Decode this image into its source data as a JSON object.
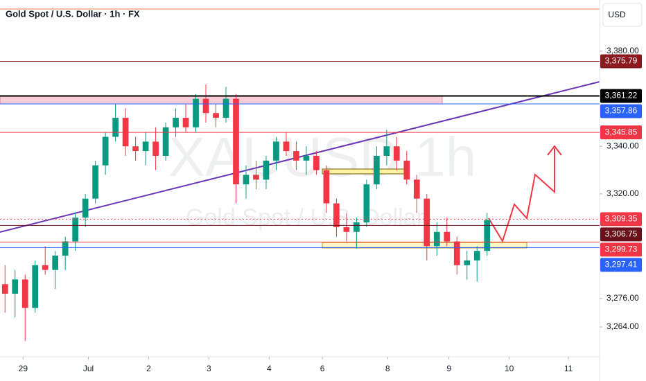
{
  "chart_data": {
    "type": "candlestick",
    "title": "Gold Spot / U.S. Dollar · 1h · FX",
    "currency": "USD",
    "watermark": "XAUUSD 1h",
    "watermark_subtitle": "Gold Spot / U.S. Dollar",
    "up_color": "#089981",
    "down_color": "#f23645",
    "xlim": [
      0,
      59.7
    ],
    "xticks": [
      {
        "value": 2.3,
        "label": "29"
      },
      {
        "value": 8.8,
        "label": "Jul"
      },
      {
        "value": 14.8,
        "label": "2"
      },
      {
        "value": 20.8,
        "label": "3"
      },
      {
        "value": 26.8,
        "label": "4"
      },
      {
        "value": 32.1,
        "label": "6"
      },
      {
        "value": 38.6,
        "label": "8"
      },
      {
        "value": 44.7,
        "label": "9"
      },
      {
        "value": 50.7,
        "label": "10"
      },
      {
        "value": 56.6,
        "label": "11"
      }
    ],
    "ylim": [
      3251.47,
      3401.57
    ],
    "yticks": [
      {
        "value": 3380,
        "label": "3,380.00"
      },
      {
        "value": 3340,
        "label": "3,340.00"
      },
      {
        "value": 3320,
        "label": "3,320.00"
      },
      {
        "value": 3276,
        "label": "3,276.00"
      },
      {
        "value": 3264,
        "label": "3,264.00"
      }
    ],
    "x": [
      0.5,
      1.5,
      2.5,
      3.5,
      4.5,
      5.5,
      6.5,
      7.5,
      8.5,
      9.5,
      10.5,
      11.5,
      12.5,
      13.5,
      14.5,
      15.5,
      16.5,
      17.5,
      18.5,
      19.5,
      20.5,
      21.5,
      22.5,
      23.5,
      24.5,
      25.5,
      26.5,
      27.5,
      28.5,
      29.5,
      30.5,
      31.5,
      32.5,
      33.5,
      34.5,
      35.5,
      36.5,
      37.5,
      38.5,
      39.5,
      40.5,
      41.5,
      42.5,
      43.5,
      44.5,
      45.5,
      46.5,
      47.5,
      48.5
    ],
    "open": [
      3282,
      3278,
      3284,
      3272,
      3290,
      3288,
      3294,
      3300,
      3310,
      3318,
      3332,
      3344,
      3352,
      3340,
      3338,
      3342,
      3336,
      3348,
      3352,
      3348,
      3360,
      3354,
      3352,
      3360,
      3324,
      3328,
      3326,
      3334,
      3342,
      3338,
      3334,
      3336,
      3330,
      3316,
      3306,
      3304,
      3308,
      3324,
      3336,
      3340,
      3334,
      3326,
      3318,
      3298,
      3304,
      3300,
      3290,
      3292,
      3296
    ],
    "high": [
      3290,
      3288,
      3286,
      3292,
      3298,
      3296,
      3302,
      3312,
      3320,
      3334,
      3346,
      3358,
      3356,
      3344,
      3346,
      3348,
      3350,
      3356,
      3358,
      3362,
      3366,
      3358,
      3365,
      3362,
      3332,
      3334,
      3336,
      3344,
      3346,
      3342,
      3340,
      3338,
      3332,
      3318,
      3312,
      3310,
      3326,
      3340,
      3347,
      3344,
      3338,
      3328,
      3320,
      3308,
      3310,
      3302,
      3296,
      3298,
      3312
    ],
    "low": [
      3270,
      3268,
      3258,
      3270,
      3286,
      3280,
      3288,
      3296,
      3306,
      3316,
      3328,
      3342,
      3336,
      3334,
      3332,
      3330,
      3334,
      3344,
      3346,
      3346,
      3350,
      3348,
      3350,
      3316,
      3318,
      3322,
      3322,
      3330,
      3336,
      3330,
      3328,
      3328,
      3312,
      3302,
      3300,
      3297,
      3306,
      3322,
      3332,
      3330,
      3324,
      3312,
      3292,
      3294,
      3298,
      3286,
      3284,
      3283,
      3294
    ],
    "close": [
      3278,
      3284,
      3272,
      3290,
      3288,
      3294,
      3300,
      3310,
      3318,
      3332,
      3344,
      3352,
      3340,
      3338,
      3342,
      3336,
      3348,
      3352,
      3348,
      3360,
      3354,
      3352,
      3360,
      3324,
      3328,
      3326,
      3334,
      3342,
      3338,
      3334,
      3336,
      3330,
      3316,
      3306,
      3304,
      3308,
      3324,
      3336,
      3340,
      3334,
      3326,
      3318,
      3298,
      3304,
      3300,
      3290,
      3292,
      3296,
      3309
    ],
    "price_lines": [
      {
        "value": 3375.79,
        "label": "3,375.79",
        "color": "#8b1a1f"
      },
      {
        "value": 3361.22,
        "label": "3,361.22",
        "color": "#000000"
      },
      {
        "value": 3357.86,
        "label": "3,357.86",
        "color": "#2962ff"
      },
      {
        "value": 3345.85,
        "label": "3,345.85",
        "color": "#f23645"
      },
      {
        "value": 3309.35,
        "label": "3,309.35",
        "color": "#f23645"
      },
      {
        "value": 3306.75,
        "label": "3,306.75",
        "color": "#6b1018"
      },
      {
        "value": 3299.73,
        "label": "3,299.73",
        "color": "#f23645"
      },
      {
        "value": 3297.41,
        "label": "3,297.41",
        "color": "#2962ff"
      }
    ]
  }
}
